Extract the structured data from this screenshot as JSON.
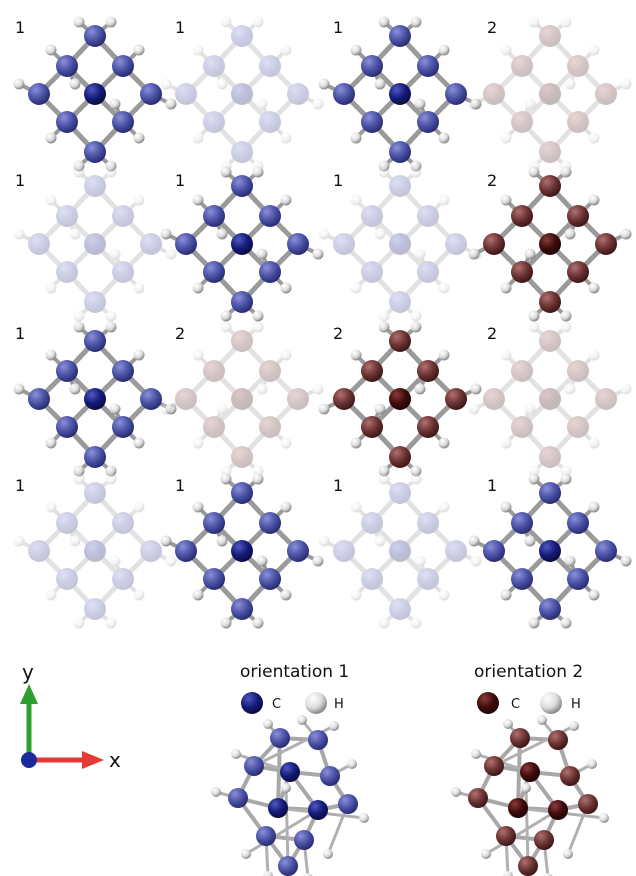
{
  "grid": {
    "cells": [
      {
        "label": "1",
        "orientation": 1,
        "faded": false
      },
      {
        "label": "1",
        "orientation": 1,
        "faded": true
      },
      {
        "label": "1",
        "orientation": 1,
        "faded": false
      },
      {
        "label": "2",
        "orientation": 2,
        "faded": true
      },
      {
        "label": "1",
        "orientation": 1,
        "faded": true
      },
      {
        "label": "1",
        "orientation": 1,
        "faded": false
      },
      {
        "label": "1",
        "orientation": 1,
        "faded": true
      },
      {
        "label": "2",
        "orientation": 2,
        "faded": false
      },
      {
        "label": "1",
        "orientation": 1,
        "faded": false
      },
      {
        "label": "2",
        "orientation": 2,
        "faded": true
      },
      {
        "label": "2",
        "orientation": 2,
        "faded": false
      },
      {
        "label": "2",
        "orientation": 2,
        "faded": true
      },
      {
        "label": "1",
        "orientation": 1,
        "faded": true
      },
      {
        "label": "1",
        "orientation": 1,
        "faded": false
      },
      {
        "label": "1",
        "orientation": 1,
        "faded": true
      },
      {
        "label": "1",
        "orientation": 1,
        "faded": false
      }
    ]
  },
  "axes": {
    "x_label": "x",
    "y_label": "y",
    "x_color": "#e53935",
    "y_color": "#2e9e2e",
    "z_color": "#1a2a9a"
  },
  "legend": {
    "orientation1": {
      "title": "orientation 1",
      "carbon_label": "C",
      "hydrogen_label": "H",
      "carbon_color": "#1b1f6e"
    },
    "orientation2": {
      "title": "orientation 2",
      "carbon_label": "C",
      "hydrogen_label": "H",
      "carbon_color": "#4a1414"
    }
  },
  "colors": {
    "carbon_center_o1": "#141a6e",
    "carbon_outer_o1": "#4f55a8",
    "carbon_center_o2": "#3a0c0c",
    "carbon_outer_o2": "#6b3434",
    "hydrogen": "#e8e8e8",
    "bond": "#9a9a9a"
  }
}
